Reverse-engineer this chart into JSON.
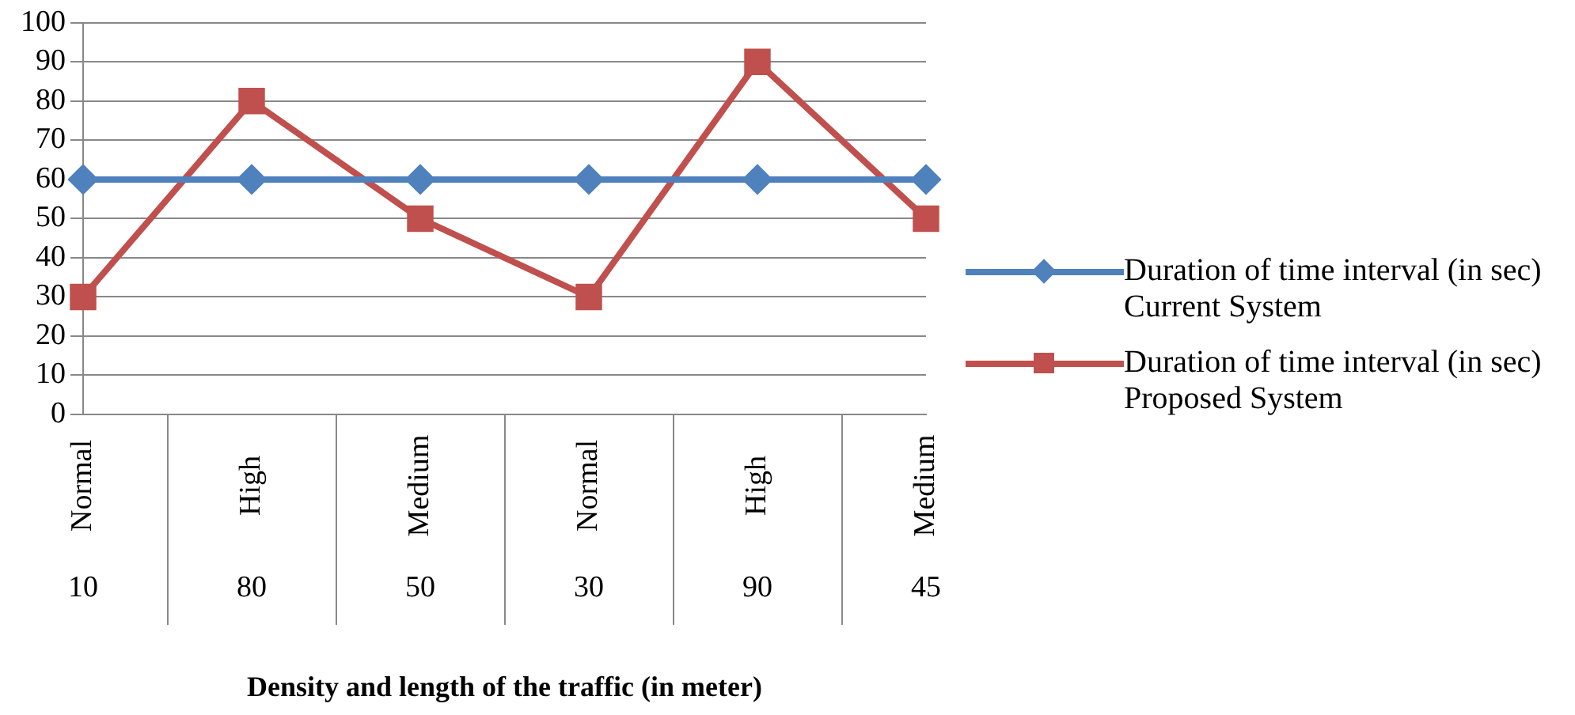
{
  "chart_data": {
    "type": "line",
    "xlabel": "Density and length of the traffic (in meter)",
    "categories": [
      "Normal\n10",
      "High\n80",
      "Medium\n50",
      "Normal\n30",
      "High\n90",
      "Medium\n45"
    ],
    "series": [
      {
        "name": "Duration of time interval (in sec) Current System",
        "color": "#4f81bd",
        "marker": "diamond",
        "values": [
          60,
          60,
          60,
          60,
          60,
          60
        ]
      },
      {
        "name": "Duration of time interval (in sec) Proposed System",
        "color": "#c0504d",
        "marker": "square",
        "values": [
          30,
          80,
          50,
          30,
          90,
          50
        ]
      }
    ],
    "ylim": [
      0,
      100
    ],
    "yticks": [
      0,
      10,
      20,
      30,
      40,
      50,
      60,
      70,
      80,
      90,
      100
    ],
    "grid": "y",
    "legend": "right"
  }
}
